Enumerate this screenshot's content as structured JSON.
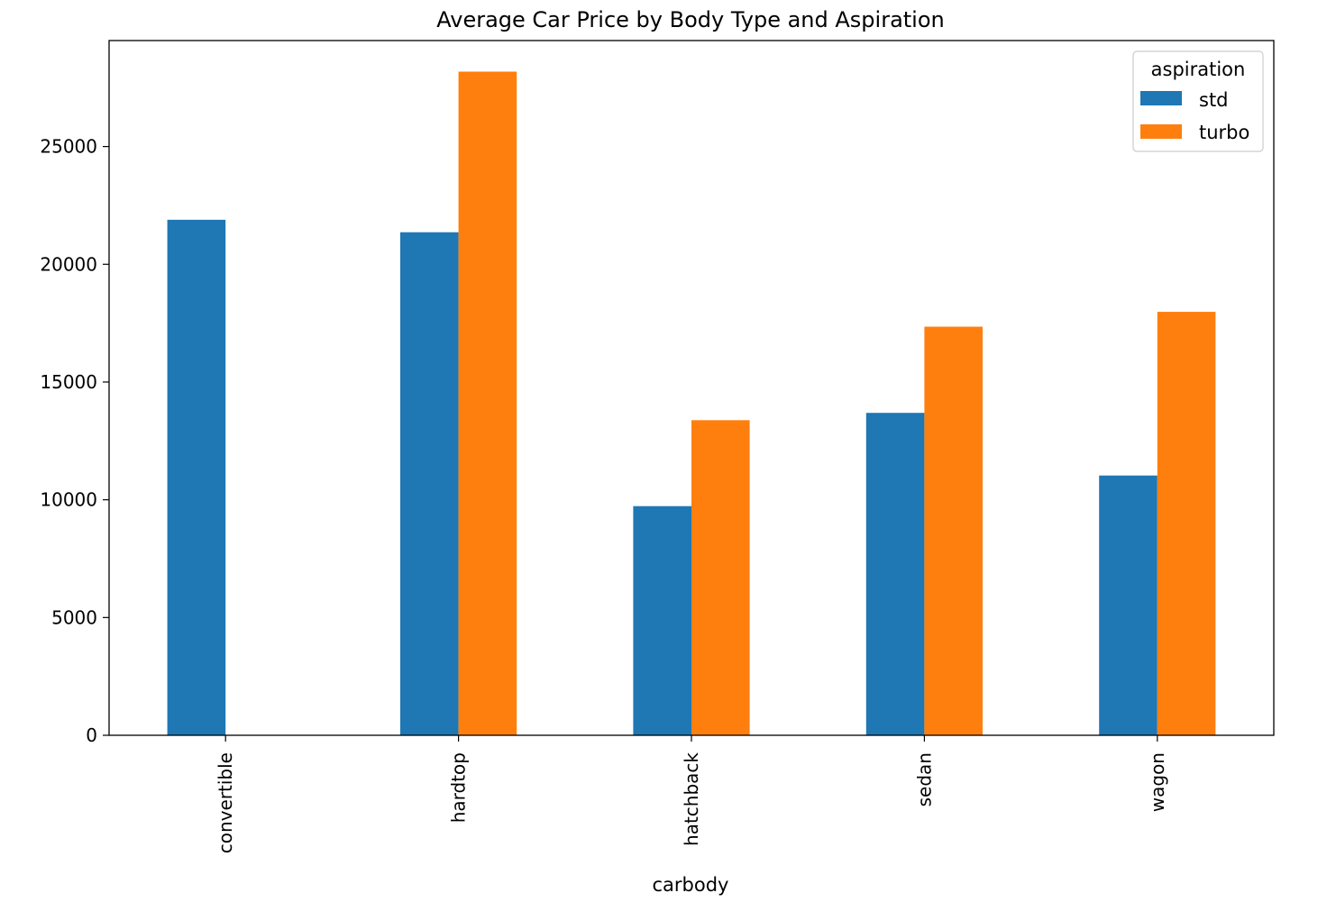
{
  "chart_data": {
    "type": "bar",
    "title": "Average Car Price by Body Type and Aspiration",
    "xlabel": "carbody",
    "ylabel": "",
    "categories": [
      "convertible",
      "hardtop",
      "hatchback",
      "sedan",
      "wagon"
    ],
    "series": [
      {
        "name": "std",
        "color": "#1f77b4",
        "values": [
          21890,
          21360,
          9730,
          13690,
          11030
        ]
      },
      {
        "name": "turbo",
        "color": "#ff7f0e",
        "values": [
          null,
          28180,
          13380,
          17350,
          17980
        ]
      }
    ],
    "ylim": [
      0,
      29500
    ],
    "yticks": [
      0,
      5000,
      10000,
      15000,
      20000,
      25000
    ],
    "grid": false,
    "legend": {
      "title": "aspiration",
      "placement": "top-right"
    }
  }
}
